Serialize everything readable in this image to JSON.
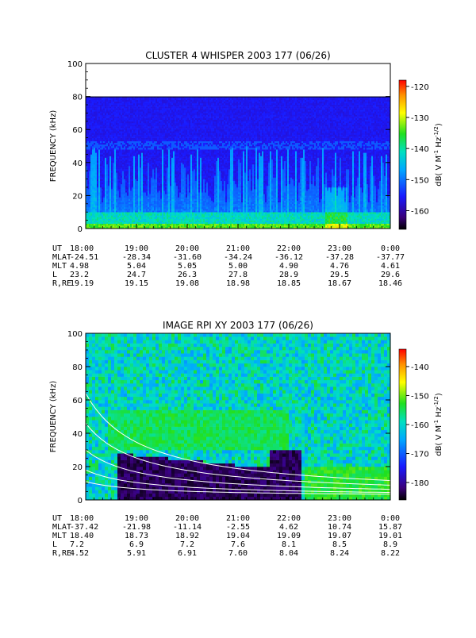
{
  "chart_data": [
    {
      "type": "heatmap",
      "title": "CLUSTER 4 WHISPER 2003 177 (06/26)",
      "ylabel": "FREQUENCY (kHz)",
      "ylim": [
        0,
        100
      ],
      "yticks": [
        0,
        20,
        40,
        60,
        80,
        100
      ],
      "data_ceiling_khz": 80,
      "x_tick_labels": [
        "18:00",
        "19:00",
        "20:00",
        "21:00",
        "22:00",
        "23:00",
        "0:00"
      ],
      "colorbar": {
        "label": "dB( V M⁻¹ Hz⁻¹ᐟ²)",
        "label_text": "dB( V M",
        "label_sup1": "-1",
        "label_mid": " Hz",
        "label_sup2": "-1/2",
        "label_end": ")",
        "range": [
          -166,
          -118
        ],
        "ticks": [
          -120,
          -130,
          -140,
          -150,
          -160
        ]
      },
      "ephemeris": {
        "UT": [
          "18:00",
          "19:00",
          "20:00",
          "21:00",
          "22:00",
          "23:00",
          "0:00"
        ],
        "MLAT": [
          "-24.51",
          "-28.34",
          "-31.60",
          "-34.24",
          "-36.12",
          "-37.28",
          "-37.77"
        ],
        "MLT": [
          "4.98",
          "5.04",
          "5.05",
          "5.00",
          "4.90",
          "4.76",
          "4.61"
        ],
        "L": [
          "23.2",
          "24.7",
          "26.3",
          "27.8",
          "28.9",
          "29.5",
          "29.6"
        ],
        "R,RE": [
          "19.19",
          "19.15",
          "19.08",
          "18.98",
          "18.85",
          "18.67",
          "18.46"
        ]
      }
    },
    {
      "type": "heatmap",
      "title": "IMAGE RPI XY 2003 177 (06/26)",
      "ylabel": "FREQUENCY (kHz)",
      "ylim": [
        0,
        100
      ],
      "yticks": [
        0,
        20,
        40,
        60,
        80,
        100
      ],
      "x_tick_labels": [
        "18:00",
        "19:00",
        "20:00",
        "21:00",
        "22:00",
        "23:00",
        "0:00"
      ],
      "colorbar": {
        "label_text": "dB( V M",
        "label_sup1": "-1",
        "label_mid": " Hz",
        "label_sup2": "-1/2",
        "label_end": ")",
        "range": [
          -186,
          -134
        ],
        "ticks": [
          -140,
          -150,
          -160,
          -170,
          -180
        ]
      },
      "ephemeris": {
        "UT": [
          "18:00",
          "19:00",
          "20:00",
          "21:00",
          "22:00",
          "23:00",
          "0:00"
        ],
        "MLAT": [
          "-37.42",
          "-21.98",
          "-11.14",
          "-2.55",
          "4.62",
          "10.74",
          "15.87"
        ],
        "MLT": [
          "18.40",
          "18.73",
          "18.92",
          "19.04",
          "19.09",
          "19.07",
          "19.01"
        ],
        "L": [
          "7.2",
          "6.9",
          "7.2",
          "7.6",
          "8.1",
          "8.5",
          "8.9"
        ],
        "R,RE": [
          "4.52",
          "5.91",
          "6.91",
          "7.60",
          "8.04",
          "8.24",
          "8.22"
        ]
      }
    }
  ]
}
